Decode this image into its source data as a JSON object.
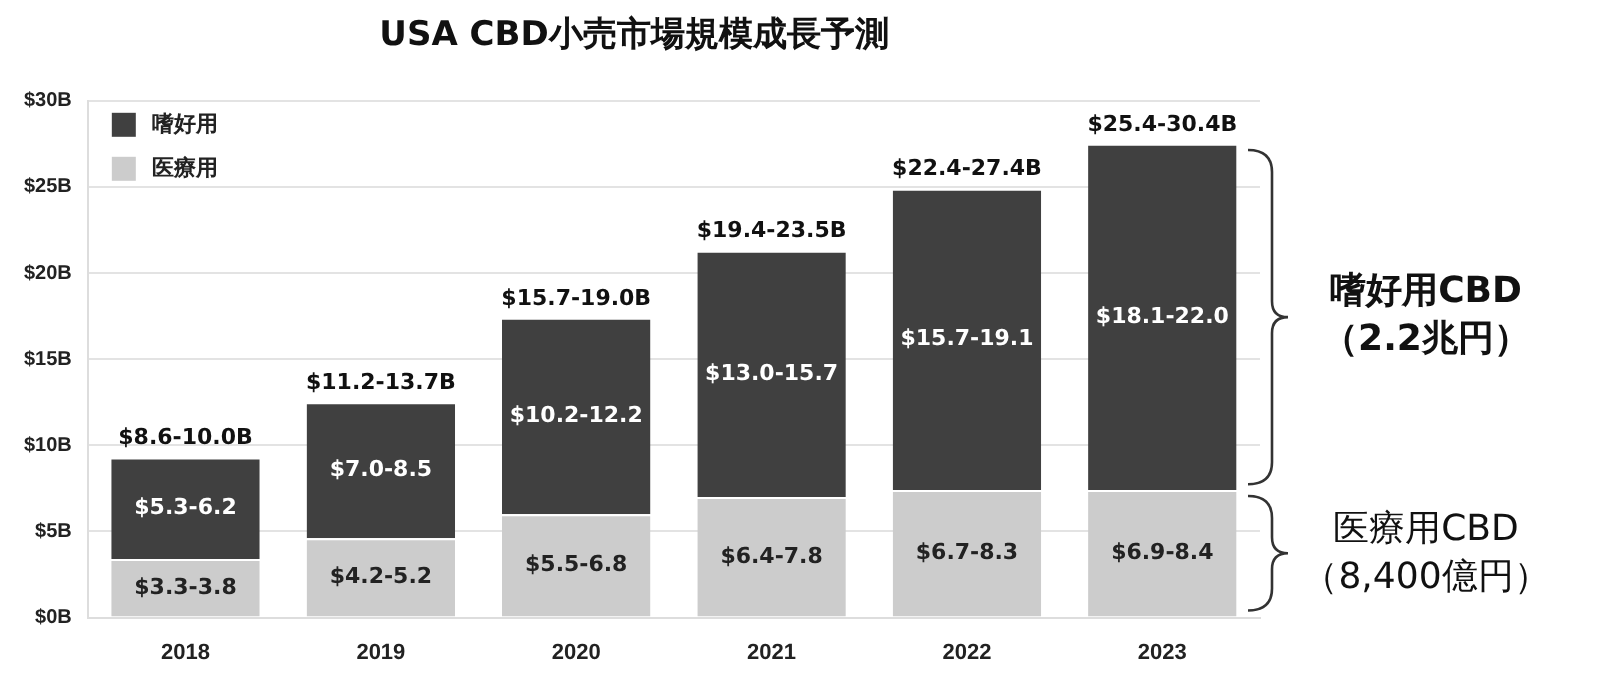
{
  "chart_data": {
    "type": "bar",
    "stacked": true,
    "title": "USA CBD小売市場規模成長予測",
    "categories": [
      "2018",
      "2019",
      "2020",
      "2021",
      "2022",
      "2023"
    ],
    "series": [
      {
        "name": "医療用",
        "color": "#cccccc",
        "values": [
          3.4,
          4.6,
          6.0,
          7.0,
          7.4,
          7.4
        ],
        "value_labels": [
          "$3.3-3.8",
          "$4.2-5.2",
          "$5.5-6.8",
          "$6.4-7.8",
          "$6.7-8.3",
          "$6.9-8.4"
        ]
      },
      {
        "name": "嗜好用",
        "color": "#404040",
        "values": [
          5.9,
          7.9,
          11.4,
          14.3,
          17.5,
          20.1
        ],
        "value_labels": [
          "$5.3-6.2",
          "$7.0-8.5",
          "$10.2-12.2",
          "$13.0-15.7",
          "$15.7-19.1",
          "$18.1-22.0"
        ]
      }
    ],
    "totals": [
      "$8.6-10.0B",
      "$11.2-13.7B",
      "$15.7-19.0B",
      "$19.4-23.5B",
      "$22.4-27.4B",
      "$25.4-30.4B"
    ],
    "ylim": [
      0,
      30
    ],
    "yticks": [
      {
        "value": 0,
        "label": "$0B"
      },
      {
        "value": 5,
        "label": "$5B"
      },
      {
        "value": 10,
        "label": "$10B"
      },
      {
        "value": 15,
        "label": "$15B"
      },
      {
        "value": 20,
        "label": "$20B"
      },
      {
        "value": 25,
        "label": "$25B"
      },
      {
        "value": 30,
        "label": "$30B"
      }
    ],
    "grid": "y",
    "legend": "top left",
    "annotations": [
      "医療用CBD\n（8,400億円）",
      "嗜好用CBD\n（2.2兆円）"
    ]
  }
}
